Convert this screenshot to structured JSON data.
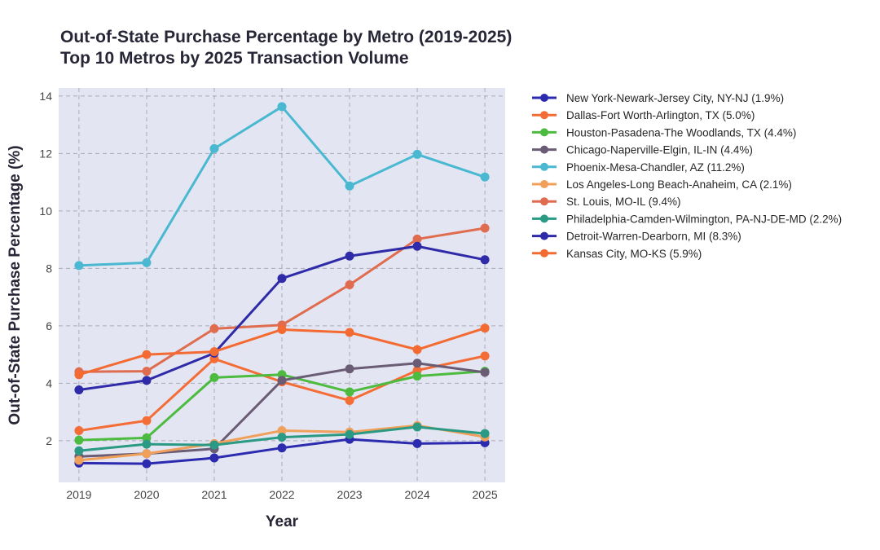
{
  "chart_data": {
    "type": "line",
    "title": "Out-of-State Purchase Percentage by Metro (2019-2025)",
    "subtitle": "Top 10 Metros by 2025 Transaction Volume",
    "xlabel": "Year",
    "ylabel": "Out-of-State Purchase Percentage (%)",
    "x": [
      2019,
      2020,
      2021,
      2022,
      2023,
      2024,
      2025
    ],
    "xlim": [
      2018.7,
      2025.3
    ],
    "ylim": [
      0.55,
      14.28
    ],
    "yticks": [
      2,
      4,
      6,
      8,
      10,
      12,
      14
    ],
    "grid": true,
    "legend_position": "outside-right",
    "background": "#e3e6f2",
    "series": [
      {
        "name": "New York-Newark-Jersey City, NY-NJ (1.9%)",
        "color": "#2c2bb0",
        "values": [
          1.22,
          1.2,
          1.4,
          1.75,
          2.05,
          1.9,
          1.93
        ]
      },
      {
        "name": "Dallas-Fort Worth-Arlington, TX (5.0%)",
        "color": "#f46d36",
        "values": [
          2.35,
          2.7,
          4.85,
          4.05,
          3.4,
          4.45,
          4.95
        ]
      },
      {
        "name": "Houston-Pasadena-The Woodlands, TX (4.4%)",
        "color": "#4cbb3f",
        "values": [
          2.02,
          2.1,
          4.2,
          4.3,
          3.7,
          4.25,
          4.42
        ]
      },
      {
        "name": "Chicago-Naperville-Elgin, IL-IN (4.4%)",
        "color": "#6a5c74",
        "values": [
          1.45,
          1.55,
          1.72,
          4.1,
          4.5,
          4.7,
          4.38
        ]
      },
      {
        "name": "Phoenix-Mesa-Chandler, AZ (11.2%)",
        "color": "#4ab8d0",
        "values": [
          8.1,
          8.2,
          12.17,
          13.63,
          10.87,
          11.97,
          11.18
        ]
      },
      {
        "name": "Los Angeles-Long Beach-Anaheim, CA (2.1%)",
        "color": "#f0a05a",
        "values": [
          1.32,
          1.55,
          1.9,
          2.35,
          2.3,
          2.53,
          2.13
        ]
      },
      {
        "name": "St. Louis, MO-IL (9.4%)",
        "color": "#e06c50",
        "values": [
          4.4,
          4.42,
          5.9,
          6.03,
          7.43,
          9.02,
          9.4
        ]
      },
      {
        "name": "Philadelphia-Camden-Wilmington, PA-NJ-DE-MD (2.2%)",
        "color": "#2a9a85",
        "values": [
          1.65,
          1.88,
          1.85,
          2.12,
          2.22,
          2.48,
          2.25
        ]
      },
      {
        "name": "Detroit-Warren-Dearborn, MI (8.3%)",
        "color": "#2e2aa8",
        "values": [
          3.77,
          4.1,
          5.05,
          7.65,
          8.43,
          8.77,
          8.3
        ]
      },
      {
        "name": "Kansas City, MO-KS (5.9%)",
        "color": "#f36b33",
        "values": [
          4.3,
          5.0,
          5.1,
          5.87,
          5.77,
          5.17,
          5.92
        ]
      }
    ]
  }
}
